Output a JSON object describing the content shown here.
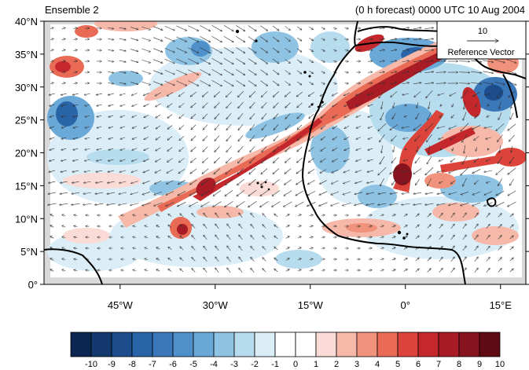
{
  "header": {
    "left_title": "Ensemble 2",
    "right_title": "(0 h forecast) 0000 UTC 10 Aug 2004"
  },
  "map": {
    "lon_range": [
      -57,
      19
    ],
    "lat_range": [
      0,
      40
    ],
    "lat_ticks": [
      "0°",
      "5°N",
      "10°N",
      "15°N",
      "20°N",
      "25°N",
      "30°N",
      "35°N",
      "40°N"
    ],
    "lon_ticks": [
      "45°W",
      "30°W",
      "15°W",
      "0°",
      "15°E"
    ],
    "lon_tick_values": [
      -45,
      -30,
      -15,
      0,
      15
    ],
    "lat_tick_values": [
      0,
      5,
      10,
      15,
      20,
      25,
      30,
      35,
      40
    ]
  },
  "reference_vector": {
    "magnitude": "10",
    "label": "Reference Vector"
  },
  "colorbar": {
    "labels": [
      "-10",
      "-9",
      "-8",
      "-7",
      "-6",
      "-5",
      "-4",
      "-3",
      "-2",
      "-1",
      "0",
      "1",
      "2",
      "3",
      "4",
      "5",
      "6",
      "7",
      "8",
      "9",
      "10"
    ],
    "colors": [
      "#0b2650",
      "#13386e",
      "#1c4c8c",
      "#2a64a8",
      "#3a78ba",
      "#4f8fca",
      "#6aa9d7",
      "#8fc3e3",
      "#b7dcee",
      "#dbeef7",
      "#ffffff",
      "#ffffff",
      "#fbdbd6",
      "#f6b8a9",
      "#f0927c",
      "#e96b56",
      "#dc443b",
      "#c5282c",
      "#a91c26",
      "#86131e",
      "#600b14"
    ]
  }
}
